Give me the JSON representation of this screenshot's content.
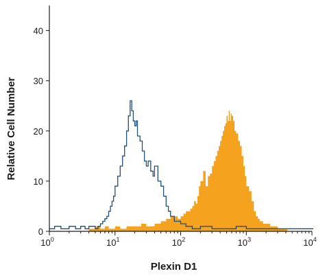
{
  "chart_data": {
    "type": "histogram",
    "xlabel": "Plexin D1",
    "ylabel": "Relative Cell Number",
    "x_scale": "log",
    "xlim": [
      1,
      10000
    ],
    "ylim": [
      0,
      45
    ],
    "x_ticks": [
      {
        "value": 1,
        "base": "10",
        "exp": "0"
      },
      {
        "value": 10,
        "base": "10",
        "exp": "1"
      },
      {
        "value": 100,
        "base": "10",
        "exp": "2"
      },
      {
        "value": 1000,
        "base": "10",
        "exp": "3"
      },
      {
        "value": 10000,
        "base": "10",
        "exp": "4"
      }
    ],
    "y_ticks": [
      0,
      10,
      20,
      30,
      40
    ],
    "grid": false,
    "series": [
      {
        "style": "filled",
        "color": "#f5a21f",
        "x": [
          4,
          5,
          6,
          7,
          8,
          10,
          12,
          15,
          20,
          25,
          30,
          40,
          50,
          60,
          70,
          80,
          90,
          100,
          110,
          120,
          130,
          140,
          150,
          160,
          170,
          180,
          190,
          200,
          220,
          240,
          260,
          280,
          300,
          320,
          340,
          360,
          380,
          400,
          420,
          440,
          460,
          480,
          500,
          520,
          540,
          560,
          580,
          600,
          630,
          660,
          700,
          750,
          800,
          850,
          900,
          950,
          1000,
          1100,
          1200,
          1300,
          1400,
          1500,
          1600,
          1800,
          2000,
          2300,
          2600,
          3000,
          3500,
          4000
        ],
        "y": [
          0.5,
          1,
          0.5,
          1,
          0.5,
          1,
          0.5,
          1,
          1,
          1.5,
          1,
          1.5,
          2,
          2.5,
          3,
          3,
          2.5,
          3,
          3.5,
          4,
          4,
          4.5,
          5,
          6,
          5.5,
          7,
          9,
          10,
          12,
          9,
          11,
          11.5,
          13,
          14,
          15,
          16,
          17,
          18,
          19,
          20,
          21,
          21.5,
          23,
          22,
          24,
          22,
          23.5,
          23,
          22,
          20,
          19.5,
          18,
          17,
          15,
          13,
          11,
          9,
          8,
          6,
          4,
          3,
          2.5,
          2,
          1.5,
          1.5,
          1,
          1,
          0.5,
          0.5,
          0.5
        ]
      },
      {
        "style": "outline",
        "color": "#1f4e79",
        "x": [
          1,
          1.2,
          1.5,
          2,
          2.5,
          3,
          3.5,
          4,
          4.5,
          5,
          5.5,
          6,
          6.5,
          7,
          7.5,
          8,
          8.5,
          9,
          9.5,
          10,
          11,
          12,
          13,
          14,
          15,
          16,
          17,
          18,
          19,
          20,
          21,
          22,
          24,
          26,
          28,
          30,
          32,
          35,
          38,
          40,
          45,
          50,
          55,
          60,
          65,
          70,
          80,
          90,
          100,
          120,
          150,
          200,
          300,
          500,
          700,
          1000,
          1500,
          2000,
          3000,
          5000,
          8000,
          10000
        ],
        "y": [
          0.5,
          1,
          0.5,
          1,
          0.5,
          1,
          0.5,
          1,
          1,
          0.5,
          1,
          1.5,
          2,
          2.5,
          3,
          4,
          5,
          6,
          7,
          9,
          11,
          13,
          15,
          17,
          20,
          23,
          26,
          24,
          22,
          21,
          22,
          19,
          18,
          16,
          14,
          13,
          14,
          12,
          11,
          13,
          10,
          9,
          7,
          5,
          4,
          3,
          2,
          2,
          1.5,
          1,
          0.5,
          1,
          0.5,
          0.5,
          1,
          0.5,
          0.5,
          0.5,
          0.5,
          0.5,
          0.5,
          0.5
        ]
      }
    ]
  }
}
